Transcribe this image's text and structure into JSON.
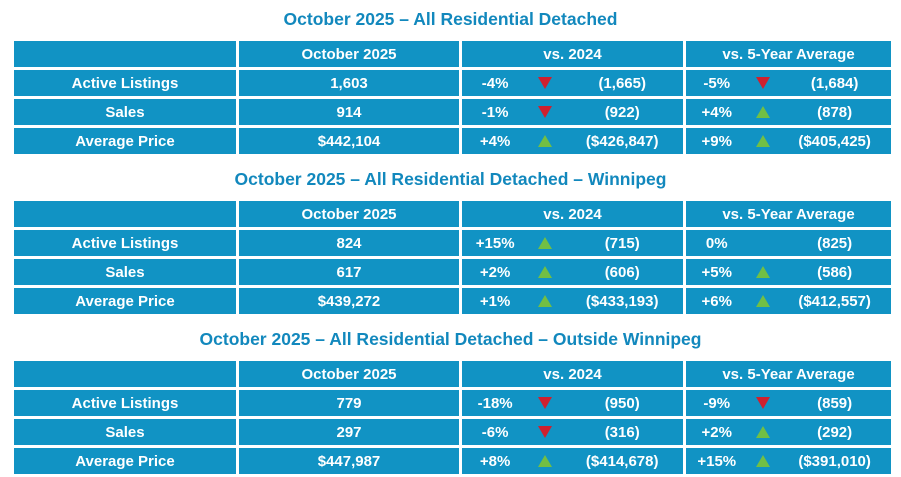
{
  "colors": {
    "cell_background": "#1193C4",
    "title_text": "#1288BD",
    "cell_text": "#FFFFFF",
    "arrow_up": "#72BF44",
    "arrow_down": "#D0202E"
  },
  "tables": [
    {
      "title": "October 2025 – All Residential Detached",
      "columns": [
        "",
        "October 2025",
        "vs. 2024",
        "vs. 5-Year Average"
      ],
      "rows": [
        {
          "label": "Active Listings",
          "current": "1,603",
          "vs_2024": {
            "pct": "-4%",
            "dir": "down",
            "value": "(1,665)"
          },
          "vs_5yr": {
            "pct": "-5%",
            "dir": "down",
            "value": "(1,684)"
          }
        },
        {
          "label": "Sales",
          "current": "914",
          "vs_2024": {
            "pct": "-1%",
            "dir": "down",
            "value": "(922)"
          },
          "vs_5yr": {
            "pct": "+4%",
            "dir": "up",
            "value": "(878)"
          }
        },
        {
          "label": "Average Price",
          "current": "$442,104",
          "vs_2024": {
            "pct": "+4%",
            "dir": "up",
            "value": "($426,847)"
          },
          "vs_5yr": {
            "pct": "+9%",
            "dir": "up",
            "value": "($405,425)"
          }
        }
      ]
    },
    {
      "title": "October 2025 – All Residential Detached – Winnipeg",
      "columns": [
        "",
        "October 2025",
        "vs. 2024",
        "vs. 5-Year Average"
      ],
      "rows": [
        {
          "label": "Active Listings",
          "current": "824",
          "vs_2024": {
            "pct": "+15%",
            "dir": "up",
            "value": "(715)"
          },
          "vs_5yr": {
            "pct": "0%",
            "dir": "none",
            "value": "(825)"
          }
        },
        {
          "label": "Sales",
          "current": "617",
          "vs_2024": {
            "pct": "+2%",
            "dir": "up",
            "value": "(606)"
          },
          "vs_5yr": {
            "pct": "+5%",
            "dir": "up",
            "value": "(586)"
          }
        },
        {
          "label": "Average Price",
          "current": "$439,272",
          "vs_2024": {
            "pct": "+1%",
            "dir": "up",
            "value": "($433,193)"
          },
          "vs_5yr": {
            "pct": "+6%",
            "dir": "up",
            "value": "($412,557)"
          }
        }
      ]
    },
    {
      "title": "October 2025 – All Residential Detached – Outside Winnipeg",
      "columns": [
        "",
        "October 2025",
        "vs. 2024",
        "vs. 5-Year Average"
      ],
      "rows": [
        {
          "label": "Active Listings",
          "current": "779",
          "vs_2024": {
            "pct": "-18%",
            "dir": "down",
            "value": "(950)"
          },
          "vs_5yr": {
            "pct": "-9%",
            "dir": "down",
            "value": "(859)"
          }
        },
        {
          "label": "Sales",
          "current": "297",
          "vs_2024": {
            "pct": "-6%",
            "dir": "down",
            "value": "(316)"
          },
          "vs_5yr": {
            "pct": "+2%",
            "dir": "up",
            "value": "(292)"
          }
        },
        {
          "label": "Average Price",
          "current": "$447,987",
          "vs_2024": {
            "pct": "+8%",
            "dir": "up",
            "value": "($414,678)"
          },
          "vs_5yr": {
            "pct": "+15%",
            "dir": "up",
            "value": "($391,010)"
          }
        }
      ]
    }
  ]
}
